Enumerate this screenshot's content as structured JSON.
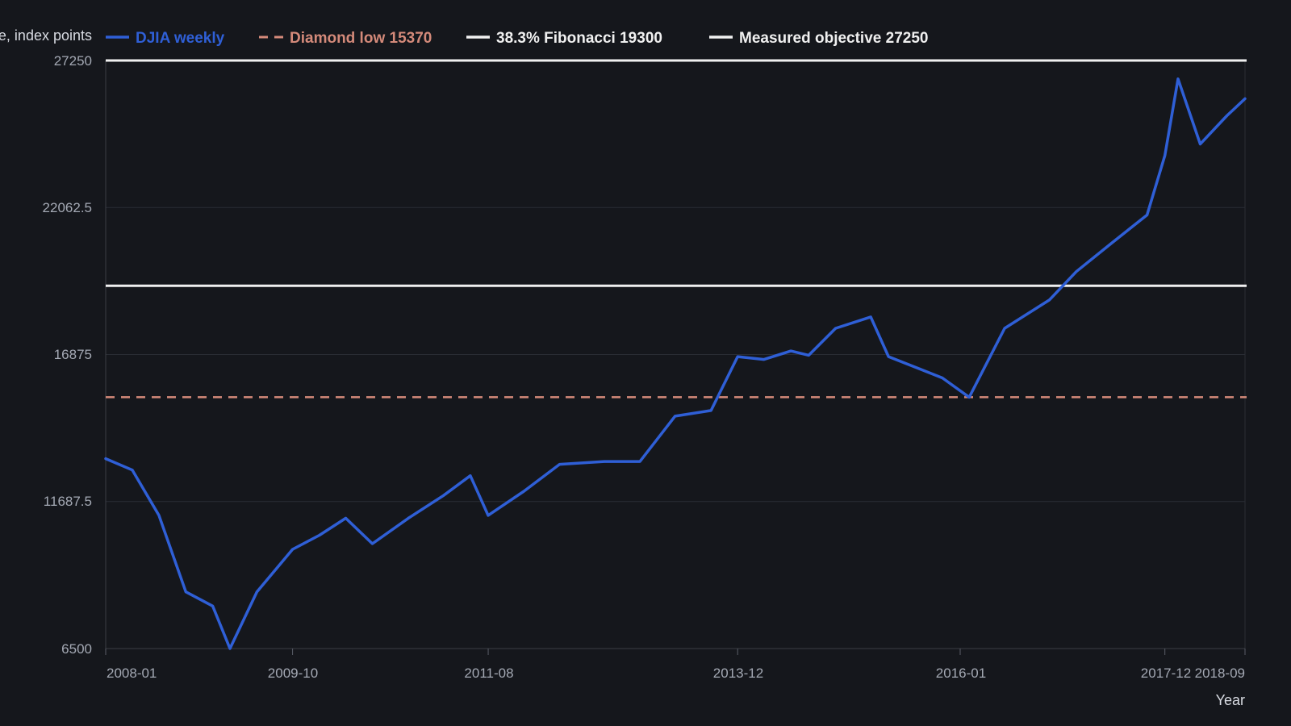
{
  "colors": {
    "background": "#15171c",
    "grid": "#2a2d34",
    "djia": "#2f5fd6",
    "diamond": "#d48a7a",
    "fib": "#f0f0f0",
    "objective": "#f0f0f0",
    "tick_text": "#a4a9b4"
  },
  "chart_data": {
    "type": "line",
    "ylabel": "Price, index points",
    "xlabel": "Year",
    "ylim": [
      6500,
      27250
    ],
    "yticks": [
      "27250",
      "22062.5",
      "16875",
      "11687.5",
      "6500"
    ],
    "ytick_values": [
      27250,
      22062.5,
      16875,
      11687.5,
      6500
    ],
    "xticks": [
      "2008-01",
      "2009-10",
      "2011-08",
      "2013-12",
      "2016-01",
      "2017-12",
      "2018-09"
    ],
    "xtick_values": [
      "2008-01-01",
      "2009-10-01",
      "2011-08-01",
      "2013-12-01",
      "2016-01-01",
      "2017-12-01",
      "2018-09-01"
    ],
    "grid": true,
    "legend_position": "top",
    "series": [
      {
        "name": "DJIA weekly",
        "style": "line",
        "x": [
          "2008-01-01",
          "2008-04-01",
          "2008-07-01",
          "2008-10-01",
          "2009-01-01",
          "2009-03-01",
          "2009-06-01",
          "2009-10-01",
          "2010-01-01",
          "2010-04-01",
          "2010-07-01",
          "2010-11-01",
          "2011-03-01",
          "2011-06-01",
          "2011-08-01",
          "2011-12-01",
          "2012-04-01",
          "2012-09-01",
          "2013-01-01",
          "2013-05-01",
          "2013-09-01",
          "2013-12-01",
          "2014-03-01",
          "2014-06-01",
          "2014-08-01",
          "2014-11-01",
          "2015-03-01",
          "2015-05-01",
          "2015-11-01",
          "2016-02-01",
          "2016-06-01",
          "2016-11-01",
          "2017-02-01",
          "2017-06-01",
          "2017-10-01",
          "2017-12-01",
          "2018-01-15",
          "2018-04-01",
          "2018-07-01",
          "2018-09-01"
        ],
        "y": [
          13200,
          12800,
          11200,
          8500,
          8000,
          6500,
          8500,
          10000,
          10500,
          11100,
          10200,
          11100,
          11900,
          12600,
          11200,
          12050,
          13000,
          13100,
          13100,
          14700,
          14900,
          16800,
          16700,
          17000,
          16850,
          17800,
          18200,
          16800,
          16050,
          15370,
          17800,
          18800,
          19800,
          20800,
          21800,
          23900,
          26600,
          24300,
          25300,
          25900
        ]
      },
      {
        "name": "Diamond low 15370",
        "style": "dashed",
        "value": 15370
      },
      {
        "name": "38.3% Fibonacci 19300",
        "style": "solid",
        "value": 19300
      },
      {
        "name": "Measured objective 27250",
        "style": "solid",
        "value": 27250
      }
    ]
  }
}
